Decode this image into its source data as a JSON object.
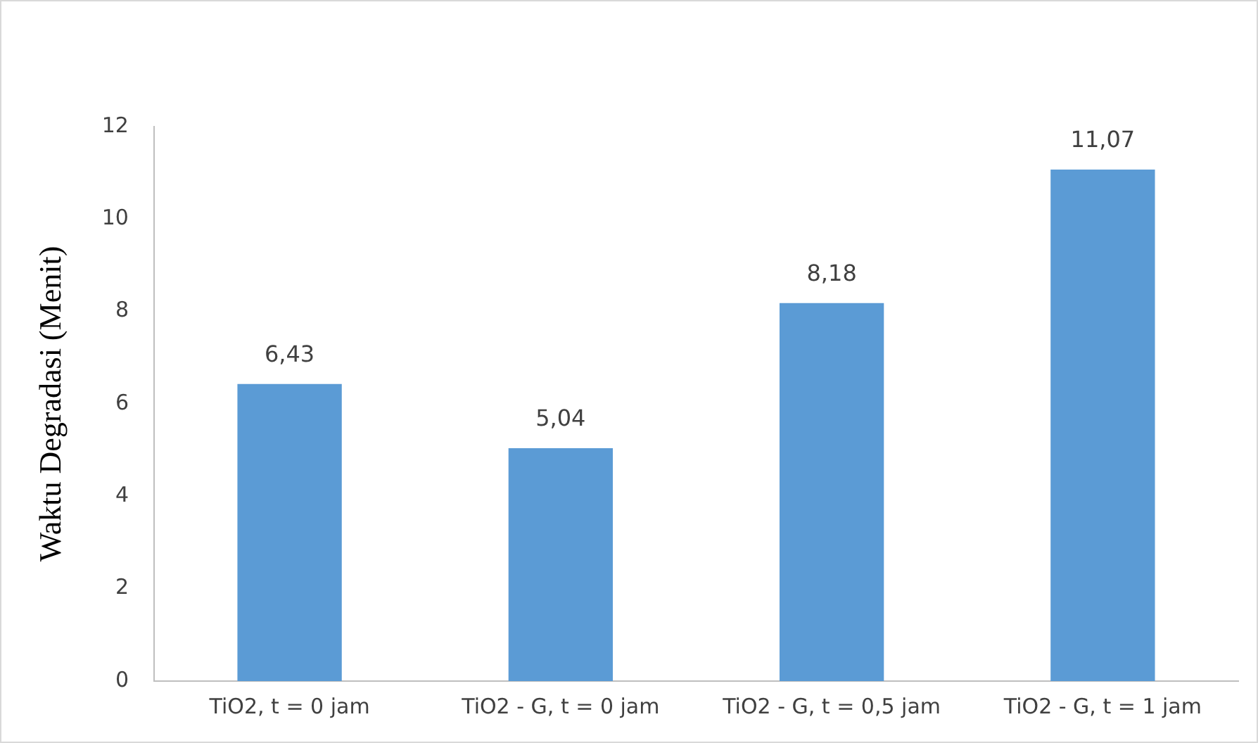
{
  "chart_data": {
    "type": "bar",
    "ylabel": "Waktu Degradasi (Menit)",
    "categories": [
      "TiO2, t = 0 jam",
      "TiO2 - G, t = 0 jam",
      "TiO2 - G, t = 0,5 jam",
      "TiO2 - G, t = 1 jam"
    ],
    "values": [
      6.43,
      5.04,
      8.18,
      11.07
    ],
    "value_labels": [
      "6,43",
      "5,04",
      "8,18",
      "11,07"
    ],
    "color": "#5b9bd5",
    "ylim": [
      0,
      12
    ],
    "yticks": [
      0,
      2,
      4,
      6,
      8,
      10,
      12
    ],
    "grid": false,
    "legend": false
  }
}
